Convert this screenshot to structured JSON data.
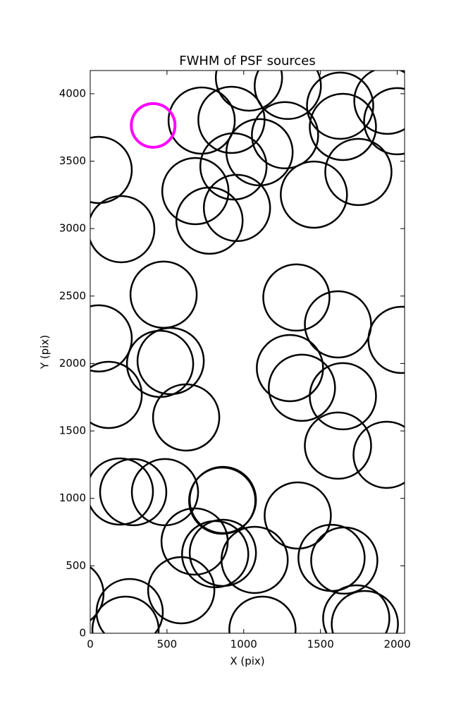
{
  "chart_data": {
    "type": "scatter",
    "title": "FWHM of PSF sources",
    "x_label": "X (pix)",
    "y_label": "Y (pix)",
    "series": [
      {
        "color": "#000000",
        "x": [
          726,
          920,
          1034,
          1287,
          1628,
          1936,
          2000,
          1269,
          1646,
          1103,
          933,
          55,
          1747,
          685,
          1457,
          956,
          777,
          202,
          478,
          1343,
          1614,
          55,
          2028,
          455,
          524,
          1301,
          1379,
          1646,
          120,
          625,
          1614,
          1931,
          193,
          280,
          487,
          860,
          864,
          1352,
          680,
          864,
          814,
          1071,
          1572,
          1655,
          593,
          -129,
          257,
          230,
          1122,
          1733,
          1789
        ],
        "values": [
          3801,
          3806,
          4120,
          4058,
          3911,
          3948,
          3796,
          3692,
          3754,
          3566,
          3461,
          3435,
          3420,
          3278,
          3252,
          3153,
          3059,
          2996,
          2510,
          2489,
          2290,
          2186,
          2175,
          1997,
          2018,
          1966,
          1820,
          1757,
          1767,
          1600,
          1391,
          1323,
          1051,
          1046,
          1046,
          983,
          988,
          873,
          680,
          596,
          586,
          544,
          559,
          539,
          319,
          293,
          157,
          26,
          26,
          110,
          68
        ]
      },
      {
        "color": "#ff00ff",
        "x": [
          410
        ],
        "values": [
          3765
        ]
      }
    ],
    "xlim": [
      0,
      2048
    ],
    "ylim": [
      0,
      4172
    ],
    "xticks": [
      0,
      500,
      1000,
      1500,
      2000
    ],
    "yticks": [
      0,
      500,
      1000,
      1500,
      2000,
      2500,
      3000,
      3500,
      4000
    ]
  }
}
